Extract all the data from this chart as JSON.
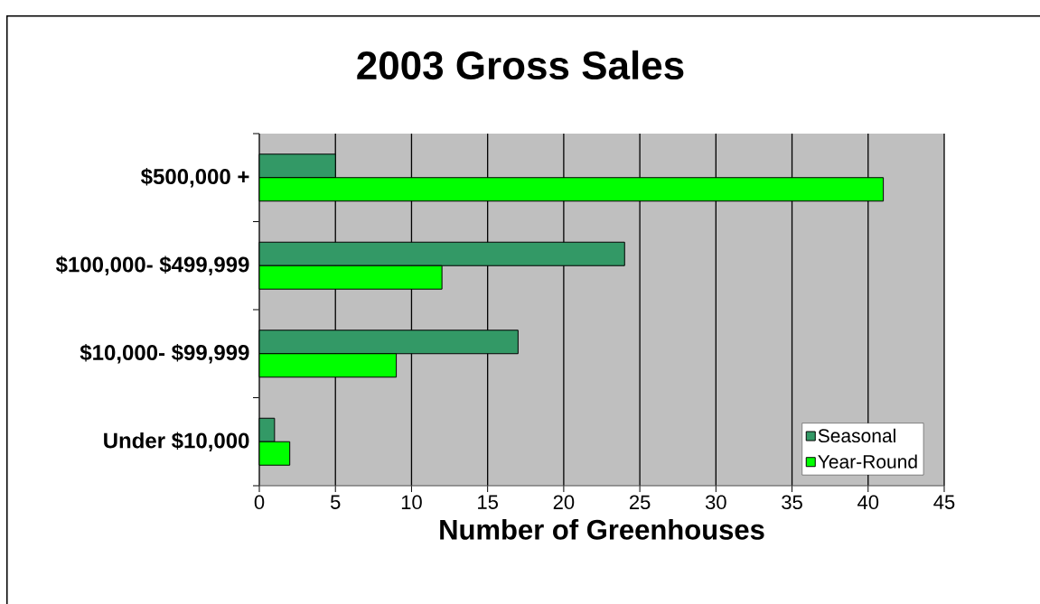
{
  "chart_data": {
    "type": "bar",
    "orientation": "horizontal",
    "title": "2003 Gross Sales",
    "xlabel": "Number of Greenhouses",
    "categories": [
      "$500,000 +",
      "$100,000- $499,999",
      "$10,000- $99,999",
      "Under $10,000"
    ],
    "series": [
      {
        "name": "Seasonal",
        "color": "#339966",
        "values": [
          5,
          24,
          17,
          1
        ]
      },
      {
        "name": "Year-Round",
        "color": "#00ff00",
        "values": [
          41,
          12,
          9,
          2
        ]
      }
    ],
    "xlim": [
      0,
      45
    ],
    "xticks": [
      0,
      5,
      10,
      15,
      20,
      25,
      30,
      35,
      40,
      45
    ],
    "grid": "x",
    "legend": "bottom right"
  }
}
